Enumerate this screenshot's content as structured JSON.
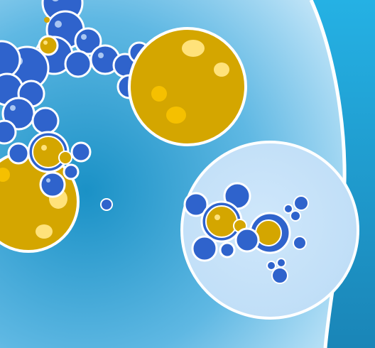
{
  "game": {
    "palette": {
      "water_top": "#25b1e4",
      "water_bottom": "#1a85b7",
      "arena_light": "#cfe9fa",
      "arena_mid": "#8fcdee",
      "blue_cell": "#2f63cc",
      "blue_cell_highlight": "#a9c6f2",
      "gold_cell": "#d4a600",
      "gold_cell_highlight": "#ffe27a",
      "outline": "#ffffff"
    }
  }
}
